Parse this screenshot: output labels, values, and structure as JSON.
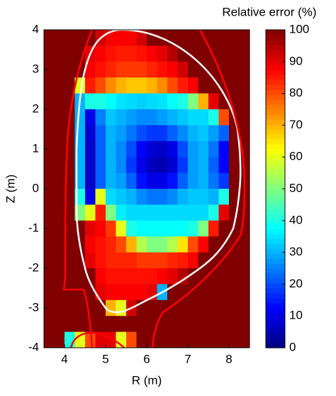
{
  "chart_data": {
    "type": "heatmap",
    "x_label": "R (m)",
    "y_label": "Z (m)",
    "x": [
      3.625,
      3.875,
      4.125,
      4.375,
      4.625,
      4.875,
      5.125,
      5.375,
      5.625,
      5.875,
      6.125,
      6.375,
      6.625,
      6.875,
      7.125,
      7.375,
      7.625,
      7.875,
      8.125,
      8.375
    ],
    "y": [
      3.8,
      3.4,
      3.0,
      2.6,
      2.2,
      1.8,
      1.4,
      1.0,
      0.6,
      0.2,
      -0.2,
      -0.6,
      -1.0,
      -1.4,
      -1.8,
      -2.2,
      -2.6,
      -3.0,
      -3.4,
      -3.8
    ],
    "values": [
      [
        100,
        100,
        100,
        100,
        100,
        92,
        88,
        88,
        88,
        92,
        100,
        100,
        100,
        100,
        100,
        100,
        100,
        100,
        100,
        100
      ],
      [
        100,
        100,
        100,
        100,
        90,
        88,
        86,
        85,
        85,
        86,
        88,
        90,
        95,
        100,
        100,
        100,
        100,
        100,
        100,
        100
      ],
      [
        100,
        100,
        100,
        100,
        88,
        86,
        84,
        82,
        82,
        82,
        84,
        86,
        88,
        92,
        100,
        100,
        100,
        100,
        100,
        100
      ],
      [
        100,
        100,
        100,
        60,
        85,
        80,
        74,
        70,
        68,
        68,
        70,
        74,
        80,
        85,
        88,
        100,
        100,
        100,
        100,
        100
      ],
      [
        100,
        100,
        100,
        30,
        40,
        40,
        38,
        35,
        34,
        33,
        34,
        35,
        38,
        40,
        50,
        70,
        90,
        100,
        100,
        100
      ],
      [
        100,
        100,
        100,
        30,
        10,
        25,
        32,
        30,
        28,
        26,
        26,
        28,
        30,
        32,
        34,
        34,
        40,
        80,
        100,
        100
      ],
      [
        100,
        100,
        100,
        30,
        8,
        22,
        30,
        28,
        24,
        20,
        18,
        18,
        22,
        26,
        30,
        32,
        28,
        22,
        100,
        100
      ],
      [
        100,
        100,
        100,
        30,
        7,
        22,
        30,
        26,
        20,
        12,
        8,
        7,
        10,
        20,
        28,
        30,
        24,
        12,
        100,
        100
      ],
      [
        100,
        100,
        100,
        30,
        7,
        22,
        30,
        26,
        18,
        10,
        6,
        5,
        8,
        18,
        28,
        30,
        22,
        12,
        100,
        100
      ],
      [
        100,
        100,
        100,
        30,
        7,
        22,
        30,
        28,
        22,
        14,
        10,
        10,
        14,
        22,
        28,
        30,
        24,
        18,
        100,
        100
      ],
      [
        100,
        100,
        100,
        40,
        10,
        60,
        34,
        32,
        30,
        26,
        24,
        24,
        26,
        30,
        32,
        32,
        30,
        40,
        100,
        100
      ],
      [
        100,
        100,
        100,
        50,
        60,
        85,
        50,
        36,
        34,
        34,
        34,
        34,
        34,
        34,
        34,
        34,
        40,
        90,
        100,
        100
      ],
      [
        100,
        100,
        100,
        100,
        90,
        88,
        82,
        60,
        40,
        38,
        38,
        38,
        38,
        38,
        40,
        50,
        85,
        100,
        100,
        100
      ],
      [
        100,
        100,
        100,
        100,
        88,
        86,
        84,
        80,
        70,
        55,
        50,
        50,
        55,
        65,
        80,
        88,
        100,
        100,
        100,
        100
      ],
      [
        100,
        100,
        100,
        100,
        90,
        86,
        84,
        84,
        84,
        82,
        82,
        82,
        84,
        85,
        88,
        100,
        100,
        100,
        100,
        100
      ],
      [
        100,
        100,
        100,
        100,
        100,
        88,
        86,
        86,
        86,
        86,
        86,
        88,
        90,
        95,
        100,
        100,
        100,
        100,
        100,
        100
      ],
      [
        100,
        100,
        100,
        100,
        100,
        90,
        88,
        88,
        88,
        88,
        90,
        30,
        100,
        100,
        100,
        100,
        100,
        100,
        100,
        100
      ],
      [
        100,
        100,
        100,
        100,
        100,
        100,
        70,
        60,
        92,
        100,
        100,
        100,
        100,
        100,
        100,
        100,
        100,
        100,
        100,
        100
      ],
      [
        100,
        100,
        100,
        100,
        100,
        100,
        100,
        100,
        100,
        100,
        100,
        100,
        100,
        100,
        100,
        100,
        100,
        100,
        100,
        100
      ],
      [
        100,
        100,
        40,
        60,
        80,
        90,
        90,
        60,
        80,
        100,
        100,
        100,
        100,
        100,
        100,
        100,
        100,
        100,
        100,
        100
      ]
    ],
    "xlim": [
      3.5,
      8.5
    ],
    "ylim": [
      -4,
      4
    ],
    "xticks": [
      4,
      5,
      6,
      7,
      8
    ],
    "yticks": [
      -4,
      -3,
      -2,
      -1,
      0,
      1,
      2,
      3,
      4
    ],
    "colormap": "jet",
    "colorbar": {
      "title": "Relative error (%)",
      "clim": [
        0,
        100
      ],
      "ticks": [
        0,
        10,
        20,
        30,
        40,
        50,
        60,
        70,
        80,
        90,
        100
      ]
    }
  }
}
